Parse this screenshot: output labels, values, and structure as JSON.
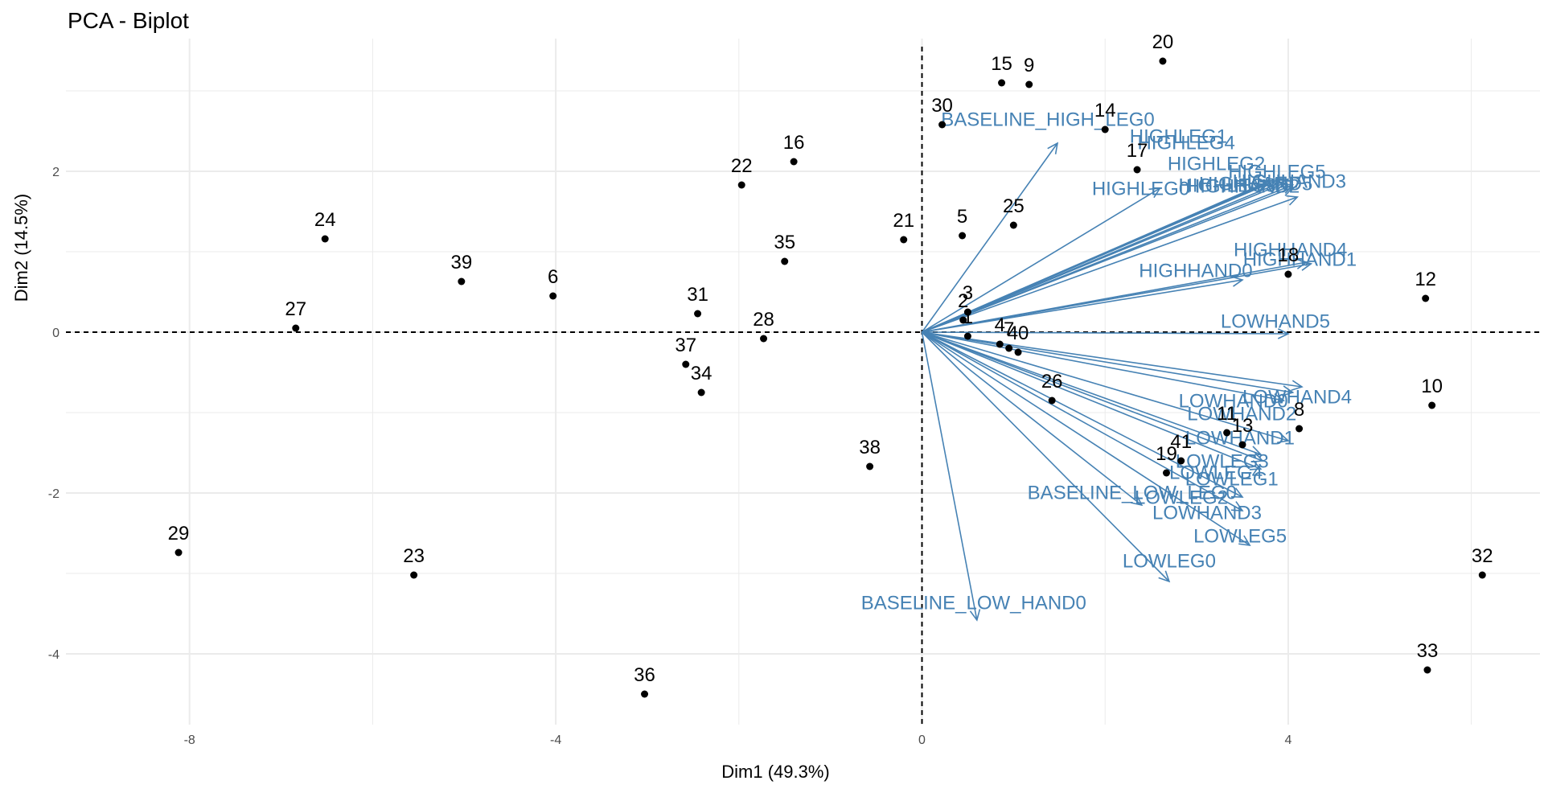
{
  "chart_data": {
    "type": "scatter",
    "title": "PCA - Biplot",
    "xlabel": "Dim1 (49.3%)",
    "ylabel": "Dim2 (14.5%)",
    "xlim": [
      -9.35,
      6.75
    ],
    "ylim": [
      -4.88,
      3.65
    ],
    "x_ticks": [
      -8,
      -4,
      0,
      4
    ],
    "x_tick_labels": [
      "-8",
      "-4",
      "0",
      "4"
    ],
    "y_ticks": [
      2,
      0,
      -2,
      -4
    ],
    "y_tick_labels": [
      "2",
      "0",
      "-2",
      "-4"
    ],
    "grid": true,
    "reference_lines": {
      "x": 0,
      "y": 0,
      "style": "dashed"
    },
    "colors": {
      "points": "#000000",
      "arrows": "#4682B4",
      "grid": "#ebebeb",
      "ticks": "#4d4d4d"
    },
    "points": [
      {
        "label": "1",
        "x": 0.5,
        "y": -0.05
      },
      {
        "label": "2",
        "x": 0.45,
        "y": 0.15
      },
      {
        "label": "3",
        "x": 0.5,
        "y": 0.25
      },
      {
        "label": "4",
        "x": 0.85,
        "y": -0.15
      },
      {
        "label": "5",
        "x": 0.44,
        "y": 1.2
      },
      {
        "label": "6",
        "x": -4.03,
        "y": 0.45
      },
      {
        "label": "7",
        "x": 0.95,
        "y": -0.2
      },
      {
        "label": "8",
        "x": 4.12,
        "y": -1.2
      },
      {
        "label": "9",
        "x": 1.17,
        "y": 3.08
      },
      {
        "label": "10",
        "x": 5.57,
        "y": -0.91
      },
      {
        "label": "11",
        "x": 3.33,
        "y": -1.25
      },
      {
        "label": "12",
        "x": 5.5,
        "y": 0.42
      },
      {
        "label": "13",
        "x": 3.5,
        "y": -1.4
      },
      {
        "label": "14",
        "x": 2.0,
        "y": 2.52
      },
      {
        "label": "15",
        "x": 0.87,
        "y": 3.1
      },
      {
        "label": "16",
        "x": -1.4,
        "y": 2.12
      },
      {
        "label": "17",
        "x": 2.35,
        "y": 2.02
      },
      {
        "label": "18",
        "x": 4.0,
        "y": 0.72
      },
      {
        "label": "19",
        "x": 2.67,
        "y": -1.75
      },
      {
        "label": "20",
        "x": 2.63,
        "y": 3.37
      },
      {
        "label": "21",
        "x": -0.2,
        "y": 1.15
      },
      {
        "label": "22",
        "x": -1.97,
        "y": 1.83
      },
      {
        "label": "23",
        "x": -5.55,
        "y": -3.02
      },
      {
        "label": "24",
        "x": -6.52,
        "y": 1.16
      },
      {
        "label": "25",
        "x": 1.0,
        "y": 1.33
      },
      {
        "label": "26",
        "x": 1.42,
        "y": -0.85
      },
      {
        "label": "27",
        "x": -6.84,
        "y": 0.05
      },
      {
        "label": "28",
        "x": -1.73,
        "y": -0.08
      },
      {
        "label": "29",
        "x": -8.12,
        "y": -2.74
      },
      {
        "label": "30",
        "x": 0.22,
        "y": 2.58
      },
      {
        "label": "31",
        "x": -2.45,
        "y": 0.23
      },
      {
        "label": "32",
        "x": 6.12,
        "y": -3.02
      },
      {
        "label": "33",
        "x": 5.52,
        "y": -4.2
      },
      {
        "label": "34",
        "x": -2.41,
        "y": -0.75
      },
      {
        "label": "35",
        "x": -1.5,
        "y": 0.88
      },
      {
        "label": "36",
        "x": -3.03,
        "y": -4.5
      },
      {
        "label": "37",
        "x": -2.58,
        "y": -0.4
      },
      {
        "label": "38",
        "x": -0.57,
        "y": -1.67
      },
      {
        "label": "39",
        "x": -5.03,
        "y": 0.63
      },
      {
        "label": "40",
        "x": 1.05,
        "y": -0.25
      },
      {
        "label": "41",
        "x": 2.83,
        "y": -1.6
      }
    ],
    "variables": [
      {
        "label": "BASELINE_HIGH_LEG0",
        "x": 1.48,
        "y": 2.35
      },
      {
        "label": "HIGHLEG0",
        "x": 2.6,
        "y": 1.79
      },
      {
        "label": "HIGHLEG1",
        "x": 3.75,
        "y": 1.84
      },
      {
        "label": "HIGHLEG4",
        "x": 3.8,
        "y": 1.88
      },
      {
        "label": "HIGHLEG2",
        "x": 3.9,
        "y": 1.9
      },
      {
        "label": "HIGHLEG5",
        "x": 4.0,
        "y": 1.9
      },
      {
        "label": "HIGHLEG3",
        "x": 3.95,
        "y": 1.85
      },
      {
        "label": "HIGHHAND2",
        "x": 4.05,
        "y": 1.8
      },
      {
        "label": "HIGHHAND5",
        "x": 4.05,
        "y": 1.83
      },
      {
        "label": "HIGHHAND3",
        "x": 4.1,
        "y": 1.68
      },
      {
        "label": "HIGHHAND4",
        "x": 4.2,
        "y": 0.87
      },
      {
        "label": "HIGHHAND1",
        "x": 4.25,
        "y": 0.85
      },
      {
        "label": "HIGHHAND0",
        "x": 3.5,
        "y": 0.65
      },
      {
        "label": "LOWHAND5",
        "x": 4.0,
        "y": -0.02
      },
      {
        "label": "LOWHAND4",
        "x": 4.15,
        "y": -0.68
      },
      {
        "label": "LOWHAND0",
        "x": 4.05,
        "y": -0.75
      },
      {
        "label": "LOWHAND2",
        "x": 3.95,
        "y": -0.85
      },
      {
        "label": "LOWHAND1",
        "x": 4.0,
        "y": -1.35
      },
      {
        "label": "LOWLEG3",
        "x": 3.7,
        "y": -1.52
      },
      {
        "label": "LOWLEG4",
        "x": 3.72,
        "y": -1.6
      },
      {
        "label": "LOWLEG1",
        "x": 3.7,
        "y": -1.7
      },
      {
        "label": "LOWLEG2",
        "x": 3.5,
        "y": -2.05
      },
      {
        "label": "LOWHAND3",
        "x": 3.5,
        "y": -2.22
      },
      {
        "label": "LOWLEG5",
        "x": 3.58,
        "y": -2.65
      },
      {
        "label": "BASELINE_LOW_LEG0",
        "x": 2.4,
        "y": -2.15
      },
      {
        "label": "LOWLEG0",
        "x": 2.7,
        "y": -3.1
      },
      {
        "label": "BASELINE_LOW_HAND0",
        "x": 0.6,
        "y": -3.58
      }
    ]
  }
}
